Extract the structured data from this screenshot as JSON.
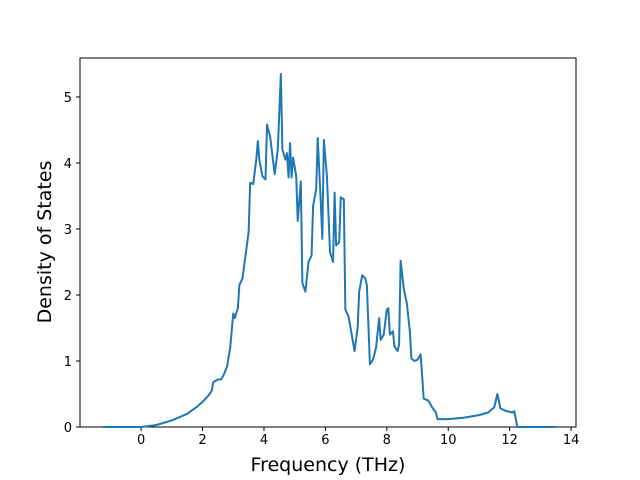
{
  "chart_data": {
    "type": "line",
    "xlabel": "Frequency (THz)",
    "ylabel": "Density of States",
    "x": [
      -1.25,
      0,
      0.5,
      1,
      1.5,
      1.8,
      2,
      2.2,
      2.3,
      2.35,
      2.5,
      2.6,
      2.7,
      2.8,
      2.9,
      3.0,
      3.05,
      3.15,
      3.2,
      3.3,
      3.4,
      3.5,
      3.55,
      3.65,
      3.75,
      3.8,
      3.85,
      3.95,
      4.05,
      4.1,
      4.2,
      4.35,
      4.45,
      4.55,
      4.6,
      4.7,
      4.75,
      4.8,
      4.85,
      4.9,
      4.95,
      5.05,
      5.1,
      5.2,
      5.25,
      5.35,
      5.45,
      5.55,
      5.6,
      5.7,
      5.75,
      5.85,
      5.9,
      5.95,
      6.05,
      6.15,
      6.25,
      6.3,
      6.35,
      6.45,
      6.5,
      6.6,
      6.65,
      6.75,
      6.85,
      6.95,
      7.05,
      7.1,
      7.2,
      7.3,
      7.35,
      7.45,
      7.55,
      7.65,
      7.75,
      7.8,
      7.9,
      8.0,
      8.05,
      8.1,
      8.2,
      8.25,
      8.35,
      8.4,
      8.45,
      8.55,
      8.65,
      8.75,
      8.8,
      8.9,
      9.0,
      9.1,
      9.15,
      9.2,
      9.35,
      9.5,
      9.6,
      9.65,
      10,
      10.5,
      11,
      11.3,
      11.5,
      11.6,
      11.7,
      11.9,
      12.1,
      12.15,
      12.25,
      13.5
    ],
    "series": [
      {
        "color": "#1f77b4",
        "values": [
          0,
          0,
          0.03,
          0.1,
          0.2,
          0.3,
          0.38,
          0.48,
          0.55,
          0.68,
          0.72,
          0.72,
          0.8,
          0.92,
          1.2,
          1.72,
          1.65,
          1.8,
          2.15,
          2.25,
          2.6,
          2.95,
          3.7,
          3.68,
          4.05,
          4.33,
          4.05,
          3.8,
          3.75,
          4.58,
          4.4,
          3.83,
          4.2,
          5.35,
          4.2,
          4.05,
          4.15,
          3.78,
          4.3,
          3.78,
          4.08,
          3.8,
          3.12,
          3.72,
          2.18,
          2.05,
          2.5,
          2.6,
          3.35,
          3.6,
          4.38,
          3.4,
          2.85,
          4.35,
          3.8,
          2.65,
          2.5,
          3.55,
          2.75,
          2.8,
          3.48,
          3.45,
          1.78,
          1.68,
          1.42,
          1.15,
          1.5,
          2.05,
          2.3,
          2.25,
          2.15,
          0.95,
          1.02,
          1.2,
          1.65,
          1.32,
          1.4,
          1.78,
          1.8,
          1.4,
          1.45,
          1.22,
          1.15,
          1.25,
          2.52,
          2.1,
          1.88,
          1.45,
          1.04,
          1.0,
          1.02,
          1.1,
          0.78,
          0.43,
          0.4,
          0.28,
          0.22,
          0.12,
          0.12,
          0.14,
          0.18,
          0.22,
          0.3,
          0.5,
          0.28,
          0.24,
          0.22,
          0.24,
          0,
          0
        ]
      }
    ],
    "xlim": [
      -1.99,
      14.16
    ],
    "ylim": [
      0,
      5.59
    ],
    "xticks": [
      0,
      2,
      4,
      6,
      8,
      10,
      12,
      14
    ],
    "yticks": [
      0,
      1,
      2,
      3,
      4,
      5
    ]
  }
}
